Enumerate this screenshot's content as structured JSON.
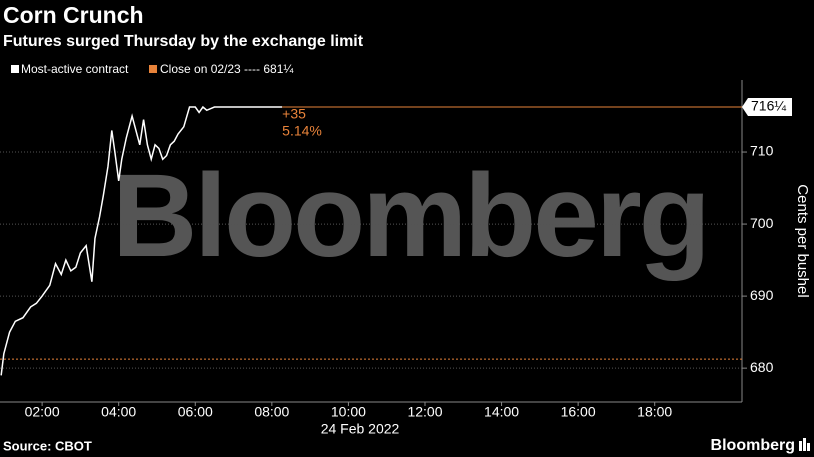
{
  "chart_data": {
    "type": "line",
    "title": "Corn Crunch",
    "subtitle": "Futures surged Thursday by the exchange limit",
    "x": [
      0.93,
      1.0,
      1.15,
      1.3,
      1.5,
      1.7,
      1.85,
      2.0,
      2.2,
      2.35,
      2.5,
      2.62,
      2.75,
      2.88,
      3.0,
      3.15,
      3.3,
      3.38,
      3.5,
      3.6,
      3.72,
      3.82,
      3.9,
      4.0,
      4.08,
      4.2,
      4.35,
      4.45,
      4.55,
      4.65,
      4.75,
      4.85,
      4.95,
      5.05,
      5.15,
      5.25,
      5.35,
      5.45,
      5.55,
      5.7,
      5.85,
      6.0,
      6.1,
      6.2,
      6.3,
      6.5,
      7.0,
      8.27
    ],
    "series": [
      {
        "name": "Most-active contract",
        "color": "#ffffff",
        "values": [
          679,
          682,
          685,
          686.5,
          687,
          688.5,
          689,
          690,
          691.5,
          694.5,
          693,
          695,
          693.5,
          694,
          696,
          697,
          692,
          698,
          701,
          704,
          708,
          713,
          710,
          706,
          709,
          712,
          715,
          713,
          711,
          714.5,
          711,
          709,
          711,
          710.5,
          709,
          709.5,
          711,
          711.5,
          712.5,
          713.5,
          716.25,
          716.25,
          715.5,
          716.25,
          715.8,
          716.25,
          716.25,
          716.25
        ]
      }
    ],
    "reference_line": {
      "name": "Close on 02/23 ---- 681¼",
      "value": 681.25,
      "color": "#e8833a"
    },
    "last_value": {
      "value": 716.25,
      "label": "716¼",
      "color": "#e8833a"
    },
    "annotations": [
      "+35",
      "5.14%"
    ],
    "x_axis_label": "24 Feb 2022",
    "y_axis_label": "Cents per bushel",
    "xlim": [
      0.9,
      20.28
    ],
    "ylim": [
      675.3,
      720
    ],
    "xticks": [
      {
        "value": 2,
        "label": "02:00"
      },
      {
        "value": 4,
        "label": "04:00"
      },
      {
        "value": 6,
        "label": "06:00"
      },
      {
        "value": 8,
        "label": "08:00"
      },
      {
        "value": 10,
        "label": "10:00"
      },
      {
        "value": 12,
        "label": "12:00"
      },
      {
        "value": 14,
        "label": "14:00"
      },
      {
        "value": 16,
        "label": "16:00"
      },
      {
        "value": 18,
        "label": "18:00"
      }
    ],
    "yticks": [
      680,
      690,
      700,
      710
    ],
    "grid": true
  },
  "watermark": "Bloomberg",
  "source": "Source: CBOT",
  "brand": "Bloomberg"
}
